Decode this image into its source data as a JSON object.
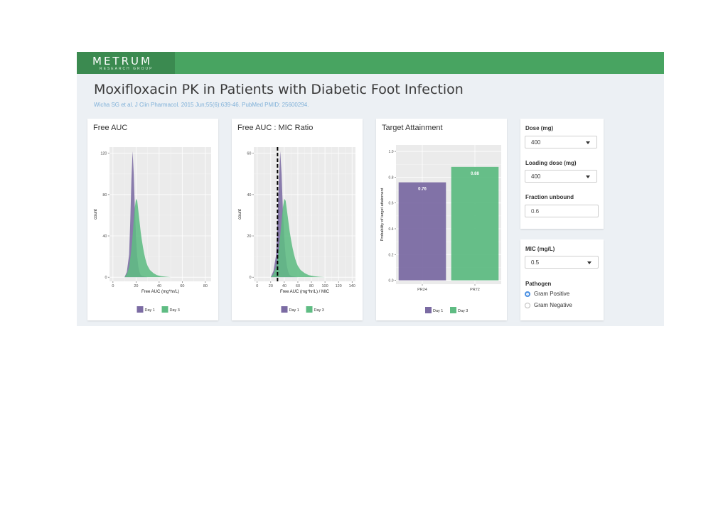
{
  "brand": {
    "name": "METRUM",
    "tagline": "RESEARCH GROUP"
  },
  "page": {
    "title": "Moxifloxacin PK in Patients with Diabetic Foot Infection",
    "citation": "Wicha SG et al. J Clin Pharmacol. 2015 Jun;55(6):639-46. PubMed PMID: 25600294."
  },
  "colors": {
    "header": "#48a461",
    "brand_block": "#3b8a50",
    "day1": "#7b6ba3",
    "day3": "#5fbc83",
    "panel_bg": "#ebebeb",
    "accent": "#4a90e2"
  },
  "panels": {
    "free_auc": {
      "title": "Free AUC"
    },
    "mic_ratio": {
      "title": "Free AUC : MIC Ratio"
    },
    "target": {
      "title": "Target Attainment"
    }
  },
  "controls": {
    "dose": {
      "label": "Dose (mg)",
      "value": "400"
    },
    "loading_dose": {
      "label": "Loading dose (mg)",
      "value": "400"
    },
    "fraction_unbound": {
      "label": "Fraction unbound",
      "value": "0.6"
    },
    "mic": {
      "label": "MIC (mg/L)",
      "value": "0.5"
    },
    "pathogen": {
      "label": "Pathogen",
      "options": [
        {
          "label": "Gram Positive",
          "selected": true
        },
        {
          "label": "Gram Negative",
          "selected": false
        }
      ]
    }
  },
  "chart_data": [
    {
      "type": "area",
      "title": "Free AUC",
      "xlabel": "Free AUC (mg*hr/L)",
      "ylabel": "count",
      "xlim": [
        -3,
        85
      ],
      "ylim": [
        -4,
        126
      ],
      "xticks": [
        0,
        20,
        40,
        60,
        80
      ],
      "yticks": [
        0,
        40,
        80,
        120
      ],
      "grid": true,
      "legend": "bottom",
      "series": [
        {
          "name": "Day 1",
          "color": "#7b6ba3",
          "x": [
            10,
            12,
            14,
            15,
            16,
            17,
            18,
            19,
            20,
            21,
            22,
            23,
            24,
            26,
            28,
            30
          ],
          "y": [
            0,
            5,
            22,
            55,
            95,
            122,
            100,
            65,
            38,
            20,
            10,
            5,
            2,
            1,
            0.5,
            0
          ]
        },
        {
          "name": "Day 3",
          "color": "#5fbc83",
          "x": [
            10,
            12,
            14,
            15,
            16,
            17,
            18,
            19,
            20,
            21,
            22,
            23,
            24,
            25,
            26,
            27,
            28,
            29,
            30,
            32,
            35,
            38,
            42,
            46,
            50
          ],
          "y": [
            0,
            3,
            10,
            18,
            28,
            40,
            55,
            68,
            76,
            74,
            64,
            54,
            44,
            36,
            29,
            23,
            18,
            14,
            11,
            7,
            4,
            2,
            1,
            0.5,
            0
          ]
        }
      ]
    },
    {
      "type": "area",
      "title": "Free AUC : MIC Ratio",
      "xlabel": "Free AUC (mg*hr/L) / MIC",
      "ylabel": "count",
      "xlim": [
        -5,
        145
      ],
      "ylim": [
        -2,
        63
      ],
      "xticks": [
        0,
        20,
        40,
        60,
        80,
        100,
        120,
        140
      ],
      "yticks": [
        0,
        20,
        40,
        60
      ],
      "grid": true,
      "legend": "bottom",
      "reference_line_x": 30,
      "series": [
        {
          "name": "Day 1",
          "color": "#7b6ba3",
          "x": [
            20,
            24,
            28,
            30,
            32,
            34,
            36,
            38,
            40,
            42,
            44,
            46,
            48,
            52,
            56,
            60
          ],
          "y": [
            0,
            3,
            11,
            27,
            47,
            61,
            50,
            32,
            19,
            10,
            5,
            2.5,
            1,
            0.5,
            0.2,
            0
          ]
        },
        {
          "name": "Day 3",
          "color": "#5fbc83",
          "x": [
            20,
            24,
            28,
            30,
            32,
            34,
            36,
            38,
            40,
            42,
            44,
            46,
            48,
            50,
            52,
            54,
            56,
            58,
            60,
            64,
            70,
            76,
            84,
            92,
            100
          ],
          "y": [
            0,
            1.5,
            5,
            9,
            14,
            20,
            27,
            34,
            38,
            37,
            32,
            27,
            22,
            18,
            14.5,
            11.5,
            9,
            7,
            5.5,
            3.5,
            2,
            1,
            0.5,
            0.2,
            0
          ]
        }
      ]
    },
    {
      "type": "bar",
      "title": "Target Attainment",
      "ylabel": "Probability of target attainment",
      "categories": [
        "PR24",
        "PR72"
      ],
      "series": [
        {
          "name": "Day 1",
          "color": "#7b6ba3",
          "values": [
            0.76,
            null
          ]
        },
        {
          "name": "Day 3",
          "color": "#5fbc83",
          "values": [
            null,
            0.88
          ]
        }
      ],
      "value_labels": [
        "0.76",
        "0.88"
      ],
      "ylim": [
        -0.03,
        1.05
      ],
      "yticks": [
        0,
        0.2,
        0.4,
        0.6,
        0.8,
        1.0
      ],
      "ytick_labels": [
        "0.0",
        "0.2",
        "0.4",
        "0.6",
        "0.8",
        "1.0"
      ],
      "grid": true,
      "legend": "bottom"
    }
  ]
}
